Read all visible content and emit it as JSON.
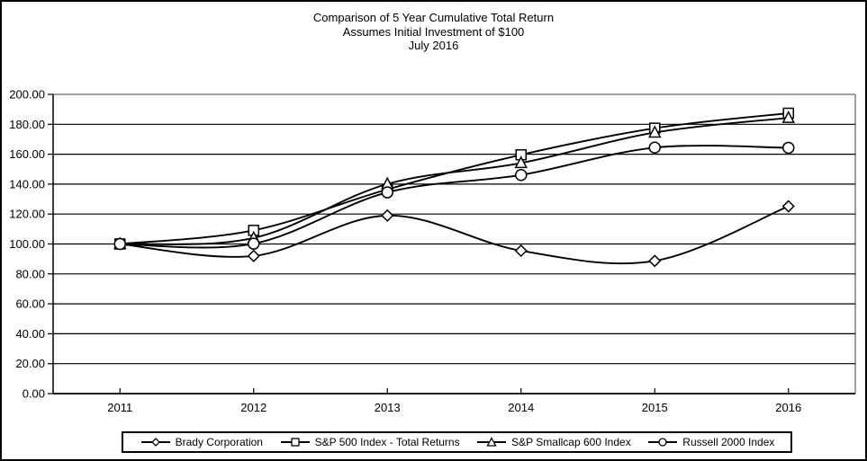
{
  "title": {
    "line1": "Comparison of 5 Year Cumulative Total Return",
    "line2": "Assumes Initial Investment of $100",
    "line3": "July 2016"
  },
  "chart_data": {
    "type": "line",
    "smooth": true,
    "categories": [
      "2011",
      "2012",
      "2013",
      "2014",
      "2015",
      "2016"
    ],
    "series": [
      {
        "name": "Brady Corporation",
        "marker": "diamond",
        "values": [
          100,
          92.0,
          119.0,
          95.5,
          88.7,
          125.2
        ]
      },
      {
        "name": "S&P 500 Index - Total Returns",
        "marker": "square",
        "values": [
          100,
          109.1,
          136.5,
          159.6,
          177.4,
          187.4
        ]
      },
      {
        "name": "S&P Smallcap 600 Index",
        "marker": "triangle",
        "values": [
          100,
          104.0,
          140.1,
          154.1,
          174.5,
          184.3
        ]
      },
      {
        "name": "Russell 2000 Index",
        "marker": "circle",
        "values": [
          100,
          100.2,
          134.5,
          146.1,
          164.4,
          164.3
        ]
      }
    ],
    "ylim": [
      0,
      200
    ],
    "ytick_step": 20,
    "ytick_decimals": 2,
    "grid": "horizontal",
    "legend_position": "bottom",
    "line_color": "#000000",
    "marker_fill": "#ffffff",
    "gridline_color": "#000000",
    "plot_border_color": "#808080",
    "xlabel": "",
    "ylabel": ""
  }
}
